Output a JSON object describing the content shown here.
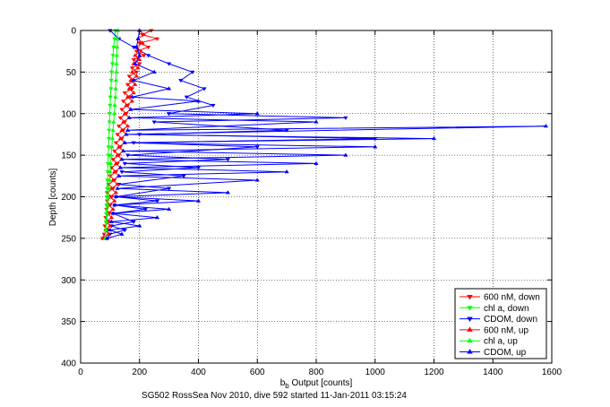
{
  "chart_data": {
    "type": "line",
    "title": "",
    "xlabel_main": "b",
    "xlabel_sub": "b",
    "xlabel_rest": " Output [counts]",
    "ylabel": "Depth [counts]",
    "caption": "SG502 RossSea Nov 2010, dive 592 started 11-Jan-2011 03:15:24",
    "xlim": [
      0,
      1600
    ],
    "ylim": [
      0,
      400
    ],
    "y_reversed": true,
    "grid": true,
    "grid_style": "dotted",
    "legend_position": "bottom-right",
    "x_ticks": [
      0,
      200,
      400,
      600,
      800,
      1000,
      1200,
      1400,
      1600
    ],
    "y_ticks": [
      0,
      50,
      100,
      150,
      200,
      250,
      300,
      350,
      400
    ],
    "colors": {
      "red": "#ff0000",
      "green": "#00ff00",
      "blue": "#0000ff"
    },
    "series": [
      {
        "name": "600 nM, down",
        "color": "#ff0000",
        "marker": "triangle-down",
        "points": [
          [
            240,
            0
          ],
          [
            210,
            5
          ],
          [
            260,
            10
          ],
          [
            200,
            15
          ],
          [
            230,
            20
          ],
          [
            190,
            25
          ],
          [
            215,
            30
          ],
          [
            180,
            35
          ],
          [
            200,
            40
          ],
          [
            175,
            45
          ],
          [
            190,
            50
          ],
          [
            165,
            55
          ],
          [
            180,
            60
          ],
          [
            160,
            65
          ],
          [
            175,
            70
          ],
          [
            150,
            75
          ],
          [
            165,
            80
          ],
          [
            145,
            85
          ],
          [
            160,
            90
          ],
          [
            140,
            95
          ],
          [
            155,
            100
          ],
          [
            135,
            105
          ],
          [
            150,
            110
          ],
          [
            130,
            115
          ],
          [
            145,
            120
          ],
          [
            125,
            125
          ],
          [
            140,
            130
          ],
          [
            120,
            135
          ],
          [
            135,
            140
          ],
          [
            115,
            145
          ],
          [
            130,
            150
          ],
          [
            110,
            155
          ],
          [
            125,
            160
          ],
          [
            105,
            165
          ],
          [
            120,
            170
          ],
          [
            100,
            175
          ],
          [
            115,
            180
          ],
          [
            95,
            185
          ],
          [
            110,
            190
          ],
          [
            90,
            195
          ],
          [
            105,
            200
          ],
          [
            90,
            205
          ],
          [
            100,
            210
          ],
          [
            88,
            215
          ],
          [
            98,
            220
          ],
          [
            85,
            225
          ],
          [
            95,
            230
          ],
          [
            82,
            235
          ],
          [
            92,
            240
          ],
          [
            80,
            245
          ],
          [
            75,
            250
          ]
        ]
      },
      {
        "name": "chl a, down",
        "color": "#00ff00",
        "marker": "triangle-down",
        "points": [
          [
            118,
            0
          ],
          [
            115,
            10
          ],
          [
            112,
            20
          ],
          [
            110,
            30
          ],
          [
            108,
            40
          ],
          [
            105,
            50
          ],
          [
            104,
            60
          ],
          [
            103,
            70
          ],
          [
            101,
            80
          ],
          [
            100,
            90
          ],
          [
            99,
            100
          ],
          [
            98,
            110
          ],
          [
            97,
            120
          ],
          [
            96,
            130
          ],
          [
            95,
            140
          ],
          [
            94,
            150
          ],
          [
            93,
            160
          ],
          [
            92,
            170
          ],
          [
            91,
            180
          ],
          [
            90,
            190
          ],
          [
            89,
            200
          ],
          [
            88,
            210
          ],
          [
            87,
            220
          ],
          [
            86,
            230
          ],
          [
            85,
            240
          ],
          [
            84,
            250
          ]
        ]
      },
      {
        "name": "CDOM, down",
        "color": "#0000ff",
        "marker": "triangle-down",
        "points": [
          [
            100,
            0
          ],
          [
            130,
            10
          ],
          [
            180,
            20
          ],
          [
            230,
            30
          ],
          [
            300,
            40
          ],
          [
            380,
            50
          ],
          [
            340,
            60
          ],
          [
            420,
            70
          ],
          [
            360,
            80
          ],
          [
            450,
            90
          ],
          [
            300,
            100
          ],
          [
            900,
            105
          ],
          [
            250,
            110
          ],
          [
            700,
            120
          ],
          [
            200,
            125
          ],
          [
            1000,
            130
          ],
          [
            180,
            135
          ],
          [
            600,
            140
          ],
          [
            160,
            150
          ],
          [
            500,
            155
          ],
          [
            150,
            160
          ],
          [
            400,
            165
          ],
          [
            140,
            170
          ],
          [
            350,
            175
          ],
          [
            130,
            185
          ],
          [
            300,
            190
          ],
          [
            120,
            200
          ],
          [
            260,
            205
          ],
          [
            115,
            210
          ],
          [
            220,
            215
          ],
          [
            110,
            220
          ],
          [
            180,
            230
          ],
          [
            105,
            235
          ],
          [
            150,
            240
          ],
          [
            100,
            245
          ],
          [
            90,
            250
          ]
        ]
      },
      {
        "name": "600 nM, up",
        "color": "#ff0000",
        "marker": "triangle-up",
        "points": [
          [
            75,
            250
          ],
          [
            95,
            245
          ],
          [
            85,
            240
          ],
          [
            100,
            235
          ],
          [
            88,
            230
          ],
          [
            105,
            225
          ],
          [
            92,
            220
          ],
          [
            110,
            215
          ],
          [
            95,
            210
          ],
          [
            115,
            205
          ],
          [
            100,
            200
          ],
          [
            120,
            195
          ],
          [
            105,
            190
          ],
          [
            125,
            185
          ],
          [
            110,
            180
          ],
          [
            130,
            175
          ],
          [
            115,
            170
          ],
          [
            135,
            165
          ],
          [
            120,
            160
          ],
          [
            140,
            155
          ],
          [
            125,
            150
          ],
          [
            145,
            145
          ],
          [
            130,
            140
          ],
          [
            150,
            135
          ],
          [
            135,
            130
          ],
          [
            155,
            125
          ],
          [
            140,
            120
          ],
          [
            160,
            115
          ],
          [
            145,
            110
          ],
          [
            165,
            105
          ],
          [
            150,
            100
          ],
          [
            170,
            95
          ],
          [
            155,
            90
          ],
          [
            175,
            85
          ],
          [
            160,
            80
          ],
          [
            180,
            75
          ],
          [
            165,
            70
          ],
          [
            185,
            65
          ],
          [
            170,
            60
          ],
          [
            190,
            55
          ],
          [
            175,
            50
          ],
          [
            195,
            45
          ],
          [
            180,
            40
          ],
          [
            200,
            35
          ],
          [
            185,
            30
          ],
          [
            205,
            25
          ],
          [
            190,
            20
          ],
          [
            210,
            15
          ],
          [
            195,
            10
          ],
          [
            215,
            5
          ],
          [
            200,
            0
          ]
        ]
      },
      {
        "name": "chl a, up",
        "color": "#00ff00",
        "marker": "triangle-up",
        "points": [
          [
            84,
            250
          ],
          [
            86,
            240
          ],
          [
            88,
            230
          ],
          [
            90,
            220
          ],
          [
            92,
            210
          ],
          [
            94,
            200
          ],
          [
            96,
            190
          ],
          [
            98,
            180
          ],
          [
            100,
            170
          ],
          [
            102,
            160
          ],
          [
            104,
            150
          ],
          [
            106,
            140
          ],
          [
            108,
            130
          ],
          [
            110,
            120
          ],
          [
            112,
            110
          ],
          [
            114,
            100
          ],
          [
            116,
            90
          ],
          [
            118,
            80
          ],
          [
            119,
            70
          ],
          [
            120,
            60
          ],
          [
            121,
            50
          ],
          [
            122,
            40
          ],
          [
            123,
            30
          ],
          [
            124,
            20
          ],
          [
            125,
            10
          ],
          [
            126,
            0
          ]
        ]
      },
      {
        "name": "CDOM, up",
        "color": "#0000ff",
        "marker": "triangle-up",
        "points": [
          [
            90,
            250
          ],
          [
            140,
            245
          ],
          [
            100,
            240
          ],
          [
            200,
            235
          ],
          [
            105,
            230
          ],
          [
            260,
            225
          ],
          [
            110,
            220
          ],
          [
            300,
            215
          ],
          [
            115,
            210
          ],
          [
            400,
            205
          ],
          [
            120,
            200
          ],
          [
            500,
            195
          ],
          [
            125,
            190
          ],
          [
            600,
            180
          ],
          [
            130,
            175
          ],
          [
            700,
            170
          ],
          [
            135,
            165
          ],
          [
            800,
            160
          ],
          [
            140,
            155
          ],
          [
            900,
            150
          ],
          [
            145,
            145
          ],
          [
            1000,
            140
          ],
          [
            150,
            135
          ],
          [
            1200,
            130
          ],
          [
            155,
            125
          ],
          [
            1580,
            115
          ],
          [
            160,
            120
          ],
          [
            800,
            110
          ],
          [
            165,
            105
          ],
          [
            600,
            100
          ],
          [
            170,
            95
          ],
          [
            400,
            85
          ],
          [
            175,
            80
          ],
          [
            300,
            70
          ],
          [
            180,
            60
          ],
          [
            250,
            50
          ],
          [
            185,
            40
          ],
          [
            200,
            30
          ],
          [
            190,
            20
          ],
          [
            195,
            10
          ],
          [
            200,
            0
          ]
        ]
      }
    ]
  }
}
